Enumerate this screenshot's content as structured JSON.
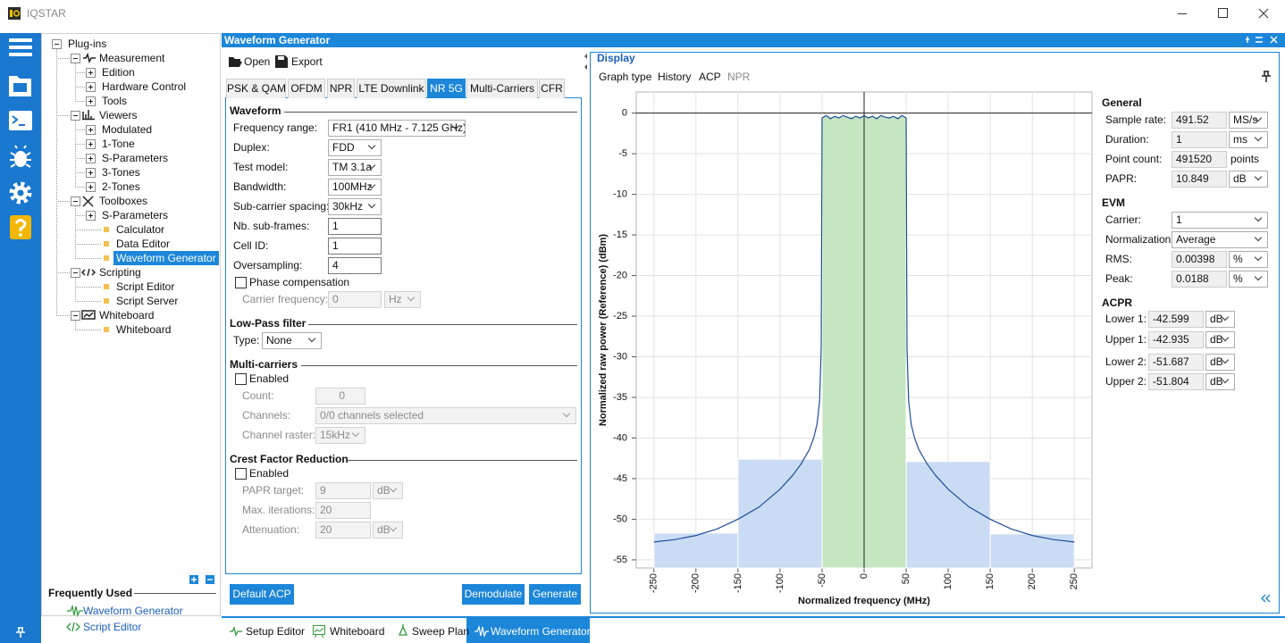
{
  "window": {
    "title": "IQSTAR"
  },
  "tree": [
    "Plug-ins",
    "Measurement",
    "Edition",
    "Hardware Control",
    "Tools",
    "Viewers",
    "Modulated",
    "1-Tone",
    "S-Parameters",
    "3-Tones",
    "2-Tones",
    "Toolboxes",
    "S-Parameters",
    "Calculator",
    "Data Editor",
    "Waveform Generator",
    "Scripting",
    "Script Editor",
    "Script Server",
    "Whiteboard",
    "Whiteboard"
  ],
  "frequently_used": {
    "title": "Frequently Used",
    "items": [
      "Waveform Generator",
      "Script Editor"
    ]
  },
  "panel": {
    "title": "Waveform Generator",
    "toolbar": [
      "Open",
      "Export"
    ],
    "tabs": [
      "PSK & QAM",
      "OFDM",
      "NPR",
      "LTE Downlink",
      "NR 5G",
      "Multi-Carriers",
      "CFR"
    ],
    "waveform": {
      "title": "Waveform",
      "fields": [
        {
          "label": "Frequency range:",
          "value": "FR1 (410 MHz - 7.125 GHz)"
        },
        {
          "label": "Duplex:",
          "value": "FDD"
        },
        {
          "label": "Test model:",
          "value": "TM 3.1a"
        },
        {
          "label": "Bandwidth:",
          "value": "100MHz"
        },
        {
          "label": "Sub-carrier spacing:",
          "value": "30kHz"
        },
        {
          "label": "Nb. sub-frames:",
          "value": "1"
        },
        {
          "label": "Cell ID:",
          "value": "1"
        },
        {
          "label": "Oversampling:",
          "value": "4"
        }
      ],
      "phase_compensation": "Phase compensation",
      "carrier_frequency": {
        "label": "Carrier frequency:",
        "value": "0",
        "unit": "Hz"
      }
    },
    "low_pass": {
      "title": "Low-Pass filter",
      "label": "Type:",
      "value": "None"
    },
    "multi_carriers": {
      "title": "Multi-carriers",
      "enabled": "Enabled",
      "count": {
        "label": "Count:",
        "value": "0"
      },
      "channels": {
        "label": "Channels:",
        "value": "0/0 channels selected"
      },
      "raster": {
        "label": "Channel raster:",
        "value": "15kHz"
      }
    },
    "cfr": {
      "title": "Crest Factor Reduction",
      "enabled": "Enabled",
      "papr_target": {
        "label": "PAPR target:",
        "value": "9",
        "unit": "dB"
      },
      "max_iterations": {
        "label": "Max. iterations:",
        "value": "20"
      },
      "attenuation": {
        "label": "Attenuation:",
        "value": "20",
        "unit": "dB"
      }
    },
    "buttons": [
      "Default ACP",
      "Demodulate",
      "Generate"
    ]
  },
  "display": {
    "title": "Display",
    "menu": [
      "Graph type",
      "History",
      "ACP",
      "NPR"
    ],
    "general": {
      "title": "General",
      "rows": [
        {
          "label": "Sample rate:",
          "value": "491.52",
          "unit": "MS/s"
        },
        {
          "label": "Duration:",
          "value": "1",
          "unit": "ms"
        },
        {
          "label": "Point count:",
          "value": "491520",
          "unit": "points"
        },
        {
          "label": "PAPR:",
          "value": "10.849",
          "unit": "dB"
        }
      ]
    },
    "evm": {
      "title": "EVM",
      "rows": [
        {
          "label": "Carrier:",
          "value": "1"
        },
        {
          "label": "Normalization:",
          "value": "Average"
        },
        {
          "label": "RMS:",
          "value": "0.00398",
          "unit": "%"
        },
        {
          "label": "Peak:",
          "value": "0.0188",
          "unit": "%"
        }
      ]
    },
    "acpr": {
      "title": "ACPR",
      "rows": [
        {
          "label": "Lower 1:",
          "value": "-42.599",
          "unit": "dB"
        },
        {
          "label": "Upper 1:",
          "value": "-42.935",
          "unit": "dB"
        },
        {
          "label": "Lower 2:",
          "value": "-51.687",
          "unit": "dB"
        },
        {
          "label": "Upper 2:",
          "value": "-51.804",
          "unit": "dB"
        }
      ]
    }
  },
  "bottom_tabs": [
    "Setup Editor",
    "Whiteboard",
    "Sweep Plan",
    "Waveform Generator"
  ],
  "chart_data": {
    "type": "line",
    "xlabel": "Normalized frequency (MHz)",
    "ylabel": "Normalized raw power (Reference) (dBm)",
    "xlim": [
      -271,
      271
    ],
    "ylim": [
      -56,
      2.6
    ],
    "xticks": [
      -250,
      -200,
      -150,
      -100,
      -50,
      0,
      50,
      100,
      150,
      200,
      250
    ],
    "yticks": [
      0,
      -5,
      -10,
      -15,
      -20,
      -25,
      -30,
      -35,
      -40,
      -45,
      -50,
      -55
    ],
    "grid": true,
    "channel_bins": [
      -250,
      -150,
      -50,
      50,
      150,
      250
    ],
    "channel_values": [
      -51.7,
      -42.6,
      -0.4,
      -42.9,
      -51.8
    ],
    "channel_colors": [
      "#cadcf4",
      "#cadcf4",
      "#c6e6c2",
      "#cadcf4",
      "#cadcf4"
    ],
    "line": {
      "color": "#1f4e9c",
      "x": [
        -250,
        -225,
        -200,
        -175,
        -150,
        -125,
        -100,
        -85,
        -75,
        -65,
        -60,
        -56,
        -53,
        -51,
        -50.5,
        -50,
        -45,
        -40,
        -35,
        -30,
        -25,
        -20,
        -15,
        -10,
        -5,
        0,
        5,
        10,
        15,
        20,
        25,
        30,
        35,
        40,
        45,
        50,
        50.5,
        51,
        53,
        56,
        60,
        65,
        75,
        85,
        100,
        125,
        150,
        175,
        200,
        225,
        250
      ],
      "values": [
        -52.8,
        -52.5,
        -52.0,
        -51.2,
        -50.0,
        -48.5,
        -46.3,
        -44.6,
        -43.2,
        -41.4,
        -40.0,
        -38.3,
        -35.5,
        -29,
        -15,
        -0.6,
        -0.3,
        -0.7,
        -0.4,
        -0.6,
        -0.3,
        -0.5,
        -0.7,
        -0.4,
        -0.6,
        -0.3,
        -0.6,
        -0.4,
        -0.7,
        -0.3,
        -0.5,
        -0.6,
        -0.4,
        -0.7,
        -0.3,
        -0.6,
        -15,
        -29,
        -35.5,
        -38.3,
        -40.0,
        -41.4,
        -43.2,
        -44.6,
        -46.3,
        -48.5,
        -50.0,
        -51.2,
        -52.0,
        -52.5,
        -52.8
      ]
    }
  }
}
